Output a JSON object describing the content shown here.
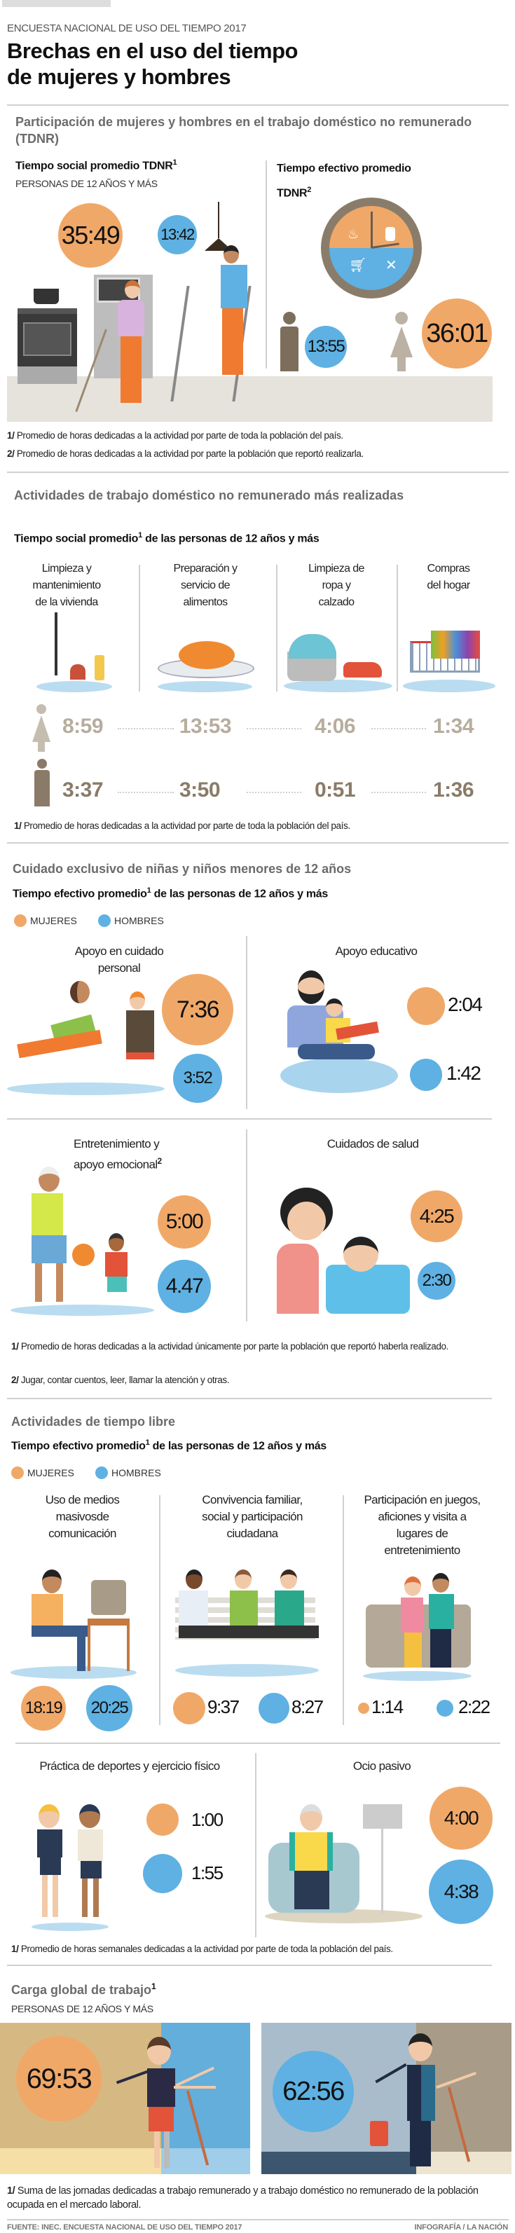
{
  "header": {
    "kicker": "ENCUESTA NACIONAL DE USO DEL TIEMPO 2017",
    "title_line1": "Brechas en el uso del tiempo",
    "title_line2": "de mujeres y hombres"
  },
  "colors": {
    "women": "#f0a868",
    "men": "#5eb1e2",
    "heading": "#6b6b6b"
  },
  "tdnr": {
    "heading": "Participación de mujeres y hombres en el trabajo doméstico no remunerado (TDNR)",
    "social": {
      "title": "Tiempo social promedio TDNR",
      "sup": "1",
      "subtitle": "PERSONAS DE 12 AÑOS Y MÁS",
      "women": "35:49",
      "men": "13:42"
    },
    "effective": {
      "title": "Tiempo efectivo promedio",
      "title2": "TDNR",
      "sup": "2",
      "men": "13:55",
      "women": "36:01"
    },
    "notes": [
      {
        "mark": "1/",
        "text": " Promedio de horas dedicadas a la actividad por parte de toda la población del país."
      },
      {
        "mark": "2/",
        "text": " Promedio de horas dedicadas a la actividad por parte la población que reportó realizarla."
      }
    ]
  },
  "domestic": {
    "heading": "Actividades de trabajo doméstico no remunerado más realizadas",
    "subtitle_a": "Tiempo social promedio",
    "sup": "1",
    "subtitle_b": " de las personas de 12 años y más",
    "activities": [
      {
        "label": "Limpieza y\nmantenimiento\nde la vivienda",
        "women": "8:59",
        "men": "3:37"
      },
      {
        "label": "Preparación y\nservicio de\nalimentos",
        "women": "13:53",
        "men": "3:50"
      },
      {
        "label": "Limpieza de\nropa y\ncalzado",
        "women": "4:06",
        "men": "0:51"
      },
      {
        "label": "Compras\ndel hogar",
        "women": "1:34",
        "men": "1:36"
      }
    ],
    "note": {
      "mark": "1/",
      "text": " Promedio de horas dedicadas a la actividad por parte de toda la población del país."
    }
  },
  "care": {
    "heading": "Cuidado exclusivo de niñas y niños menores de 12 años",
    "subtitle_a": "Tiempo efectivo promedio",
    "sup": "1",
    "subtitle_b": " de las personas de 12 años y más",
    "legend": {
      "women": "MUJERES",
      "men": "HOMBRES"
    },
    "items": [
      {
        "label": "Apoyo en cuidado\npersonal",
        "women": "7:36",
        "men": "3:52"
      },
      {
        "label": "Apoyo educativo",
        "women": "2:04",
        "men": "1:42"
      },
      {
        "label": "Entretenimiento y\napoyo emocional",
        "sup": "2",
        "women": "5:00",
        "men": "4.47"
      },
      {
        "label": "Cuidados de salud",
        "women": "4:25",
        "men": "2:30"
      }
    ],
    "notes": [
      {
        "mark": "1/",
        "text": " Promedio de horas dedicadas a la actividad únicamente por parte la población que reportó haberla realizado."
      },
      {
        "mark": "2/",
        "text": " Jugar, contar cuentos, leer, llamar la atención y otras."
      }
    ]
  },
  "free": {
    "heading": "Actividades de tiempo libre",
    "subtitle_a": "Tiempo efectivo promedio",
    "sup": "1",
    "subtitle_b": " de las personas de 12 años y más",
    "legend": {
      "women": "MUJERES",
      "men": "HOMBRES"
    },
    "items": [
      {
        "label": "Uso de medios\nmasivosde\ncomunicación",
        "women": "18:19",
        "men": "20:25"
      },
      {
        "label": "Convivencia familiar,\nsocial y participación\nciudadana",
        "women": "9:37",
        "men": "8:27"
      },
      {
        "label": "Participación en juegos,\naficiones y  visita a\nlugares de\nentretenimiento",
        "women": "1:14",
        "men": "2:22"
      },
      {
        "label": "Práctica de deportes y ejercicio físico",
        "women": "1:00",
        "men": "1:55"
      },
      {
        "label": "Ocio pasivo",
        "women": "4:00",
        "men": "4:38"
      }
    ],
    "note": {
      "mark": "1/",
      "text": " Promedio de horas semanales dedicadas a la actividad por parte de toda la población del país."
    }
  },
  "load": {
    "heading": "Carga global de trabajo",
    "sup": "1",
    "subtitle": "PERSONAS DE 12 AÑOS Y MÁS",
    "women": "69:53",
    "men": "62:56",
    "note": {
      "mark": "1/",
      "text": " Suma de las jornadas dedicadas a trabajo remunerado y a trabajo doméstico no remunerado de la población ocupada en el mercado laboral."
    }
  },
  "footer": {
    "source": "FUENTE: INEC. ENCUESTA NACIONAL DE USO DEL TIEMPO 2017",
    "credit": "INFOGRAFÍA / LA NACIÓN"
  }
}
